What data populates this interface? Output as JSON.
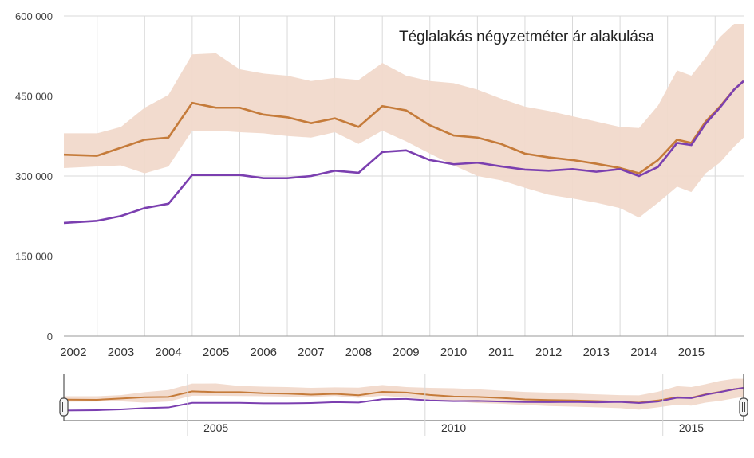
{
  "chart_data": {
    "type": "area",
    "title": "Téglalakás négyzetméter ár alakulása",
    "xlabel": "",
    "ylabel": "",
    "xlim": [
      2001.8,
      2016.1
    ],
    "ylim": [
      0,
      600000
    ],
    "y_ticks": [
      0,
      150000,
      300000,
      450000,
      600000
    ],
    "y_tick_labels": [
      "0",
      "150 000",
      "300 000",
      "450 000",
      "600 000"
    ],
    "x_tick_labels": [
      "2002",
      "2003",
      "2004",
      "2005",
      "2006",
      "2007",
      "2008",
      "2009",
      "2010",
      "2011",
      "2012",
      "2013",
      "2014",
      "2015"
    ],
    "grid": true,
    "legend": "none",
    "colors": {
      "series_a": "#c57b3a",
      "series_b": "#7b3fb0",
      "band": "#f1d9cb",
      "grid": "#d9d9d9"
    },
    "x": [
      2001.8,
      2002.5,
      2003.0,
      2003.5,
      2004.0,
      2004.5,
      2005.0,
      2005.5,
      2006.0,
      2006.5,
      2007.0,
      2007.5,
      2008.0,
      2008.5,
      2009.0,
      2009.5,
      2010.0,
      2010.5,
      2011.0,
      2011.5,
      2012.0,
      2012.5,
      2013.0,
      2013.5,
      2013.9,
      2014.3,
      2014.7,
      2015.0,
      2015.3,
      2015.6,
      2015.9,
      2016.1
    ],
    "series": [
      {
        "values": [
          340000,
          338000,
          353000,
          368000,
          372000,
          437000,
          428000,
          428000,
          415000,
          410000,
          399000,
          408000,
          392000,
          431000,
          423000,
          395000,
          376000,
          372000,
          360000,
          342000,
          335000,
          330000,
          323000,
          315000,
          305000,
          330000,
          368000,
          362000,
          402000,
          430000,
          462000,
          478000
        ]
      },
      {
        "values": [
          212000,
          216000,
          225000,
          240000,
          248000,
          302000,
          302000,
          302000,
          296000,
          296000,
          300000,
          310000,
          306000,
          345000,
          348000,
          330000,
          322000,
          325000,
          318000,
          312000,
          310000,
          313000,
          308000,
          313000,
          300000,
          317000,
          362000,
          358000,
          398000,
          428000,
          462000,
          478000
        ]
      }
    ],
    "band": {
      "lower": [
        315000,
        318000,
        320000,
        305000,
        318000,
        385000,
        385000,
        382000,
        380000,
        375000,
        372000,
        382000,
        360000,
        385000,
        365000,
        342000,
        320000,
        300000,
        292000,
        278000,
        265000,
        258000,
        250000,
        240000,
        222000,
        250000,
        280000,
        270000,
        305000,
        325000,
        355000,
        372000
      ],
      "upper": [
        380000,
        380000,
        392000,
        428000,
        452000,
        528000,
        530000,
        500000,
        492000,
        488000,
        478000,
        484000,
        480000,
        512000,
        488000,
        478000,
        474000,
        462000,
        445000,
        430000,
        422000,
        412000,
        402000,
        392000,
        390000,
        432000,
        498000,
        488000,
        522000,
        560000,
        585000,
        585000
      ]
    },
    "navigator": {
      "tick_labels": [
        "2005",
        "2010",
        "2015"
      ]
    }
  }
}
